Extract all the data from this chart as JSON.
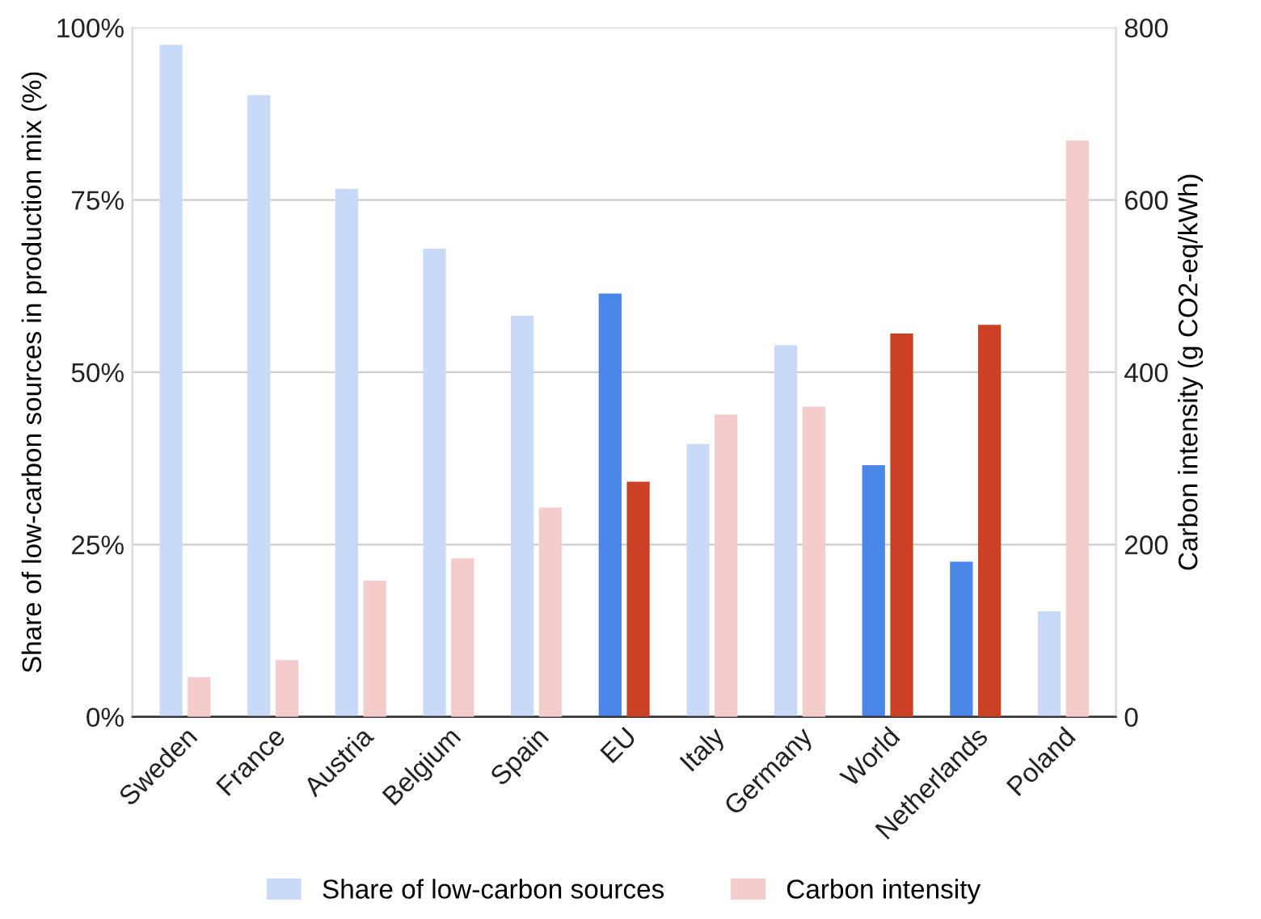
{
  "chart_data": {
    "type": "bar",
    "categories": [
      "Sweden",
      "France",
      "Austria",
      "Belgium",
      "Spain",
      "EU",
      "Italy",
      "Germany",
      "World",
      "Netherlands",
      "Poland"
    ],
    "series": [
      {
        "name": "Share of low-carbon sources",
        "color": "#c9daf8",
        "colors": [
          "#c9daf8",
          "#c9daf8",
          "#c9daf8",
          "#c9daf8",
          "#c9daf8",
          "#4a86e8",
          "#c9daf8",
          "#c9daf8",
          "#4a86e8",
          "#4a86e8",
          "#c9daf8"
        ],
        "values": [
          97.5,
          90.2,
          76.6,
          67.9,
          58.2,
          61.4,
          39.6,
          53.9,
          36.5,
          22.5,
          15.3
        ]
      },
      {
        "name": "Carbon intensity",
        "color": "#f4cccc",
        "axis": "y2",
        "colors": [
          "#f4cccc",
          "#f4cccc",
          "#f4cccc",
          "#f4cccc",
          "#f4cccc",
          "#cc4125",
          "#f4cccc",
          "#f4cccc",
          "#cc4125",
          "#cc4125",
          "#f4cccc"
        ],
        "values": [
          46,
          66,
          158,
          184,
          243,
          273,
          351,
          360,
          445,
          455,
          669
        ]
      }
    ],
    "ylabel": "Share of low-carbon sources in production mix (%)",
    "y2label": "Carbon intensity (g CO2-eq/kWh)",
    "ylim": [
      0,
      100
    ],
    "yticks": [
      {
        "value": 0,
        "label": "0%"
      },
      {
        "value": 25,
        "label": "25%"
      },
      {
        "value": 50,
        "label": "50%"
      },
      {
        "value": 75,
        "label": "75%"
      },
      {
        "value": 100,
        "label": "100%"
      }
    ],
    "y2lim": [
      0,
      800
    ],
    "y2ticks": [
      0,
      200,
      400,
      600,
      800
    ],
    "grid": "y",
    "legend": "bottom"
  }
}
